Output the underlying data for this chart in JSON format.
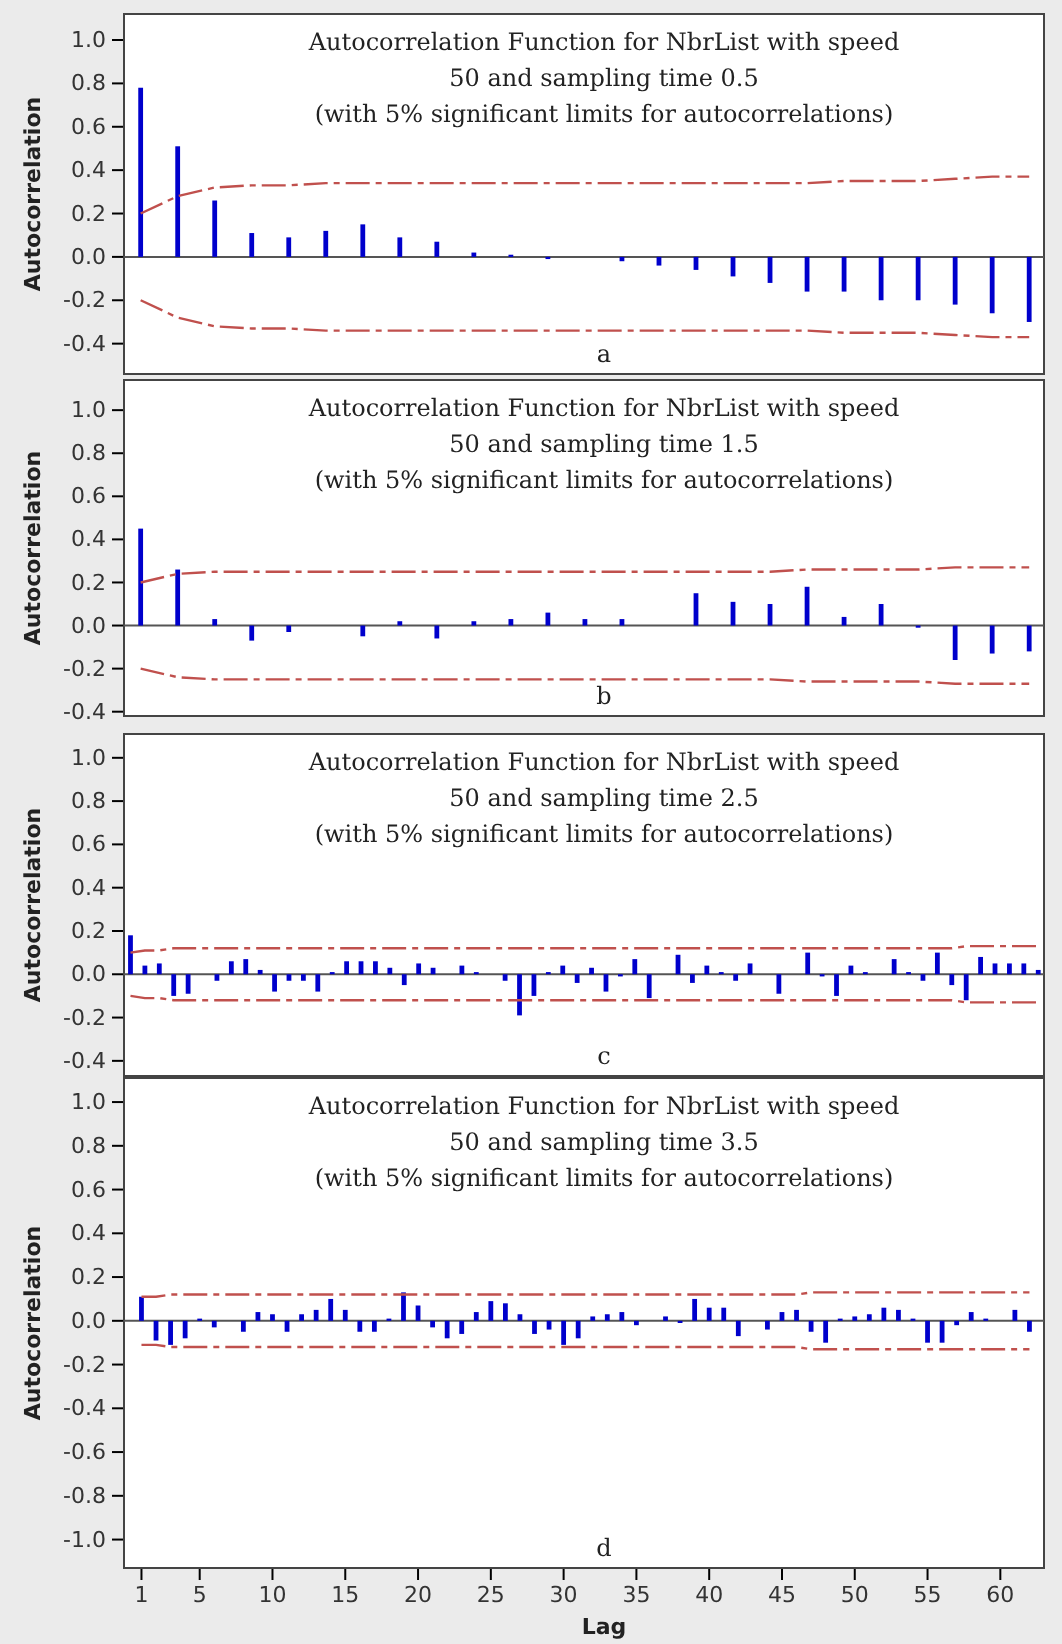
{
  "chart_data": [
    {
      "type": "bar",
      "title": "Autocorrelation Function for NbrList with speed 50 and sampling time 0.5",
      "subtitle": "(with 5% significant limits for autocorrelations)",
      "ylabel": "Autocorrelation",
      "annotations": [
        "a"
      ],
      "tick_labels": "y",
      "categories": [
        null,
        null,
        null,
        null,
        null,
        null,
        null,
        null,
        null,
        null,
        null,
        null,
        null,
        null,
        null,
        null,
        null,
        null,
        null,
        null,
        null,
        null,
        null,
        null,
        null
      ],
      "ylim": [
        -0.54,
        1.12
      ],
      "yticks": [
        -0.4,
        -0.2,
        {
          "value": 0,
          "label": "0.0"
        },
        0.2,
        0.4,
        0.6,
        0.8,
        {
          "value": 1,
          "label": "1.0"
        }
      ],
      "series": [
        {
          "color": "#0000cc",
          "values": [
            0.78,
            0.51,
            0.26,
            0.11,
            0.09,
            0.12,
            0.15,
            0.09,
            0.07,
            0.02,
            0.01,
            -0.01,
            0,
            -0.02,
            -0.04,
            -0.06,
            -0.09,
            -0.12,
            -0.16,
            -0.16,
            -0.2,
            -0.2,
            -0.22,
            -0.26,
            -0.3
          ]
        },
        {
          "type": "line",
          "color": "#c0504d",
          "line_style": "dashed",
          "values": [
            0.2,
            0.28,
            0.32,
            0.33,
            0.33,
            0.34,
            0.34,
            0.34,
            0.34,
            0.34,
            0.34,
            0.34,
            0.34,
            0.34,
            0.34,
            0.34,
            0.34,
            0.34,
            0.34,
            0.35,
            0.35,
            0.35,
            0.36,
            0.37,
            0.37
          ]
        },
        {
          "type": "line",
          "color": "#c0504d",
          "line_style": "dashed",
          "values": [
            -0.2,
            -0.28,
            -0.32,
            -0.33,
            -0.33,
            -0.34,
            -0.34,
            -0.34,
            -0.34,
            -0.34,
            -0.34,
            -0.34,
            -0.34,
            -0.34,
            -0.34,
            -0.34,
            -0.34,
            -0.34,
            -0.34,
            -0.35,
            -0.35,
            -0.35,
            -0.36,
            -0.37,
            -0.37
          ]
        }
      ]
    },
    {
      "type": "bar",
      "title": "Autocorrelation Function for NbrList with speed 50 and sampling time 1.5",
      "subtitle": "(with 5% significant limits for autocorrelations)",
      "ylabel": "Autocorrelation",
      "annotations": [
        "b"
      ],
      "tick_labels": "y",
      "categories": [
        null,
        null,
        null,
        null,
        null,
        null,
        null,
        null,
        null,
        null,
        null,
        null,
        null,
        null,
        null,
        null,
        null,
        null,
        null,
        null,
        null,
        null,
        null,
        null,
        null
      ],
      "ylim": [
        -0.42,
        1.14
      ],
      "yticks": [
        -0.4,
        -0.2,
        {
          "value": 0,
          "label": "0.0"
        },
        0.2,
        0.4,
        0.6,
        0.8,
        {
          "value": 1,
          "label": "1.0"
        }
      ],
      "series": [
        {
          "color": "#0000cc",
          "values": [
            0.45,
            0.26,
            0.03,
            -0.07,
            -0.03,
            0,
            -0.05,
            0.02,
            -0.06,
            0.02,
            0.03,
            0.06,
            0.03,
            0.03,
            0,
            0.15,
            0.11,
            0.1,
            0.18,
            0.04,
            0.1,
            -0.01,
            -0.16,
            -0.13,
            -0.12
          ]
        },
        {
          "type": "line",
          "color": "#c0504d",
          "line_style": "dashed",
          "values": [
            0.2,
            0.24,
            0.25,
            0.25,
            0.25,
            0.25,
            0.25,
            0.25,
            0.25,
            0.25,
            0.25,
            0.25,
            0.25,
            0.25,
            0.25,
            0.25,
            0.25,
            0.25,
            0.26,
            0.26,
            0.26,
            0.26,
            0.27,
            0.27,
            0.27
          ]
        },
        {
          "type": "line",
          "color": "#c0504d",
          "line_style": "dashed",
          "values": [
            -0.2,
            -0.24,
            -0.25,
            -0.25,
            -0.25,
            -0.25,
            -0.25,
            -0.25,
            -0.25,
            -0.25,
            -0.25,
            -0.25,
            -0.25,
            -0.25,
            -0.25,
            -0.25,
            -0.25,
            -0.25,
            -0.26,
            -0.26,
            -0.26,
            -0.26,
            -0.27,
            -0.27,
            -0.27
          ]
        }
      ]
    },
    {
      "type": "bar",
      "title": "Autocorrelation Function for NbrList with speed 50 and sampling time  2.5",
      "subtitle": "(with 5% significant limits for autocorrelations)",
      "ylabel": "Autocorrelation",
      "annotations": [
        "c"
      ],
      "tick_labels": "y",
      "categories": [
        null,
        null,
        null,
        null,
        null,
        null,
        null,
        null,
        null,
        null,
        null,
        null,
        null,
        null,
        null,
        null,
        null,
        null,
        null,
        null,
        null,
        null,
        null,
        null,
        null,
        null,
        null,
        null,
        null,
        null,
        null,
        null,
        null,
        null,
        null,
        null,
        null,
        null,
        null,
        null,
        null,
        null,
        null,
        null,
        null,
        null,
        null,
        null,
        null,
        null,
        null,
        null,
        null,
        null,
        null,
        null,
        null,
        null,
        null,
        null,
        null,
        null,
        null,
        null
      ],
      "ylim": [
        -0.47,
        1.11
      ],
      "yticks": [
        -0.4,
        -0.2,
        {
          "value": 0,
          "label": "0.0"
        },
        0.2,
        0.4,
        0.6,
        0.8,
        {
          "value": 1,
          "label": "1.0"
        }
      ],
      "series": [
        {
          "color": "#0000cc",
          "values": [
            0.18,
            0.04,
            0.05,
            -0.1,
            -0.09,
            0,
            -0.03,
            0.06,
            0.07,
            0.02,
            -0.08,
            -0.03,
            -0.03,
            -0.08,
            0.01,
            0.06,
            0.06,
            0.06,
            0.03,
            -0.05,
            0.05,
            0.03,
            0,
            0.04,
            0.01,
            0,
            -0.03,
            -0.19,
            -0.1,
            0.01,
            0.04,
            -0.04,
            0.03,
            -0.08,
            -0.01,
            0.07,
            -0.11,
            0,
            0.09,
            -0.04,
            0.04,
            0.01,
            -0.03,
            0.05,
            0,
            -0.09,
            0,
            0.1,
            -0.01,
            -0.1,
            0.04,
            0.01,
            0,
            0.07,
            0.01,
            -0.03,
            0.1,
            -0.05,
            -0.12,
            0.08,
            0.05,
            0.05,
            0.05,
            0.02
          ]
        },
        {
          "type": "line",
          "color": "#c0504d",
          "line_style": "dashed",
          "values": [
            0.1,
            0.11,
            0.11,
            0.12,
            0.12,
            0.12,
            0.12,
            0.12,
            0.12,
            0.12,
            0.12,
            0.12,
            0.12,
            0.12,
            0.12,
            0.12,
            0.12,
            0.12,
            0.12,
            0.12,
            0.12,
            0.12,
            0.12,
            0.12,
            0.12,
            0.12,
            0.12,
            0.12,
            0.12,
            0.12,
            0.12,
            0.12,
            0.12,
            0.12,
            0.12,
            0.12,
            0.12,
            0.12,
            0.12,
            0.12,
            0.12,
            0.12,
            0.12,
            0.12,
            0.12,
            0.12,
            0.12,
            0.12,
            0.12,
            0.12,
            0.12,
            0.12,
            0.12,
            0.12,
            0.12,
            0.12,
            0.12,
            0.12,
            0.13,
            0.13,
            0.13,
            0.13,
            0.13,
            0.13
          ]
        },
        {
          "type": "line",
          "color": "#c0504d",
          "line_style": "dashed",
          "values": [
            -0.1,
            -0.11,
            -0.11,
            -0.12,
            -0.12,
            -0.12,
            -0.12,
            -0.12,
            -0.12,
            -0.12,
            -0.12,
            -0.12,
            -0.12,
            -0.12,
            -0.12,
            -0.12,
            -0.12,
            -0.12,
            -0.12,
            -0.12,
            -0.12,
            -0.12,
            -0.12,
            -0.12,
            -0.12,
            -0.12,
            -0.12,
            -0.12,
            -0.12,
            -0.12,
            -0.12,
            -0.12,
            -0.12,
            -0.12,
            -0.12,
            -0.12,
            -0.12,
            -0.12,
            -0.12,
            -0.12,
            -0.12,
            -0.12,
            -0.12,
            -0.12,
            -0.12,
            -0.12,
            -0.12,
            -0.12,
            -0.12,
            -0.12,
            -0.12,
            -0.12,
            -0.12,
            -0.12,
            -0.12,
            -0.12,
            -0.12,
            -0.12,
            -0.13,
            -0.13,
            -0.13,
            -0.13,
            -0.13,
            -0.13
          ]
        }
      ]
    },
    {
      "type": "bar",
      "title": "Autocorrelation Function for NbrList with speed 50 and sampling time 3.5",
      "subtitle": "(with 5% significant limits for autocorrelations)",
      "ylabel": "Autocorrelation",
      "xlabel": "Lag",
      "annotations": [
        "d"
      ],
      "x": [
        1,
        2,
        3,
        4,
        5,
        6,
        7,
        8,
        9,
        10,
        11,
        12,
        13,
        14,
        15,
        16,
        17,
        18,
        19,
        20,
        21,
        22,
        23,
        24,
        25,
        26,
        27,
        28,
        29,
        30,
        31,
        32,
        33,
        34,
        35,
        36,
        37,
        38,
        39,
        40,
        41,
        42,
        43,
        44,
        45,
        46,
        47,
        48,
        49,
        50,
        51,
        52,
        53,
        54,
        55,
        56,
        57,
        58,
        59,
        60,
        61,
        62
      ],
      "xlim": [
        -0.2,
        63
      ],
      "xticks": [
        1,
        5,
        10,
        15,
        20,
        25,
        30,
        35,
        40,
        45,
        50,
        55,
        60
      ],
      "ylim": [
        -1.13,
        1.11
      ],
      "yticks": [
        {
          "value": -1,
          "label": "-1.0"
        },
        -0.8,
        -0.6,
        -0.4,
        -0.2,
        {
          "value": 0,
          "label": "0.0"
        },
        0.2,
        0.4,
        0.6,
        0.8,
        {
          "value": 1,
          "label": "1.0"
        }
      ],
      "series": [
        {
          "color": "#0000cc",
          "values": [
            0.11,
            -0.09,
            -0.11,
            -0.08,
            0.01,
            -0.03,
            0,
            -0.05,
            0.04,
            0.03,
            -0.05,
            0.03,
            0.05,
            0.1,
            0.05,
            -0.05,
            -0.05,
            0.01,
            0.13,
            0.07,
            -0.03,
            -0.08,
            -0.06,
            0.04,
            0.09,
            0.08,
            0.03,
            -0.06,
            -0.04,
            -0.11,
            -0.08,
            0.02,
            0.03,
            0.04,
            -0.02,
            0,
            0.02,
            -0.01,
            0.1,
            0.06,
            0.06,
            -0.07,
            0,
            -0.04,
            0.04,
            0.05,
            -0.05,
            -0.1,
            0.01,
            0.02,
            0.03,
            0.06,
            0.05,
            0.01,
            -0.1,
            -0.1,
            -0.02,
            0.04,
            0.01,
            0,
            0.05,
            -0.05
          ]
        },
        {
          "type": "line",
          "color": "#c0504d",
          "line_style": "dashed",
          "values": [
            0.11,
            0.11,
            0.12,
            0.12,
            0.12,
            0.12,
            0.12,
            0.12,
            0.12,
            0.12,
            0.12,
            0.12,
            0.12,
            0.12,
            0.12,
            0.12,
            0.12,
            0.12,
            0.12,
            0.12,
            0.12,
            0.12,
            0.12,
            0.12,
            0.12,
            0.12,
            0.12,
            0.12,
            0.12,
            0.12,
            0.12,
            0.12,
            0.12,
            0.12,
            0.12,
            0.12,
            0.12,
            0.12,
            0.12,
            0.12,
            0.12,
            0.12,
            0.12,
            0.12,
            0.12,
            0.12,
            0.13,
            0.13,
            0.13,
            0.13,
            0.13,
            0.13,
            0.13,
            0.13,
            0.13,
            0.13,
            0.13,
            0.13,
            0.13,
            0.13,
            0.13,
            0.13
          ]
        },
        {
          "type": "line",
          "color": "#c0504d",
          "line_style": "dashed",
          "values": [
            -0.11,
            -0.11,
            -0.12,
            -0.12,
            -0.12,
            -0.12,
            -0.12,
            -0.12,
            -0.12,
            -0.12,
            -0.12,
            -0.12,
            -0.12,
            -0.12,
            -0.12,
            -0.12,
            -0.12,
            -0.12,
            -0.12,
            -0.12,
            -0.12,
            -0.12,
            -0.12,
            -0.12,
            -0.12,
            -0.12,
            -0.12,
            -0.12,
            -0.12,
            -0.12,
            -0.12,
            -0.12,
            -0.12,
            -0.12,
            -0.12,
            -0.12,
            -0.12,
            -0.12,
            -0.12,
            -0.12,
            -0.12,
            -0.12,
            -0.12,
            -0.12,
            -0.12,
            -0.12,
            -0.13,
            -0.13,
            -0.13,
            -0.13,
            -0.13,
            -0.13,
            -0.13,
            -0.13,
            -0.13,
            -0.13,
            -0.13,
            -0.13,
            -0.13,
            -0.13,
            -0.13,
            -0.13
          ]
        }
      ]
    }
  ]
}
